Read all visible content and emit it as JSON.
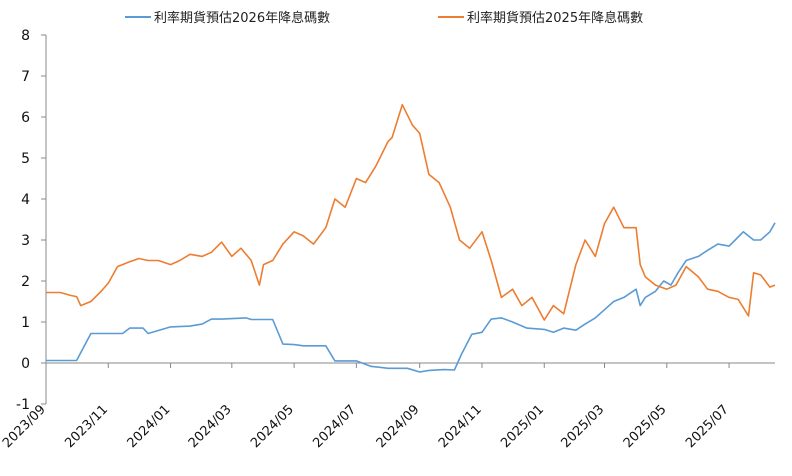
{
  "chart_data": {
    "type": "line",
    "title": "",
    "xlabel": "",
    "ylabel": "",
    "ylim": [
      -1,
      8
    ],
    "yticks": [
      -1,
      0,
      1,
      2,
      3,
      4,
      5,
      6,
      7,
      8
    ],
    "xlim": [
      "2023-09",
      "2025-08"
    ],
    "xticks": [
      "2023/09",
      "2023/11",
      "2024/01",
      "2024/03",
      "2024/05",
      "2024/07",
      "2024/09",
      "2024/11",
      "2025/01",
      "2025/03",
      "2025/05",
      "2025/07"
    ],
    "grid": false,
    "legend": "top",
    "series": [
      {
        "name": "利率期貨預估2026年降息碼數",
        "color": "#5b9bd5",
        "x": [
          "2023-09-01",
          "2023-10-01",
          "2023-10-15",
          "2023-11-15",
          "2023-11-22",
          "2023-12-05",
          "2023-12-10",
          "2024-01-01",
          "2024-01-20",
          "2024-02-01",
          "2024-02-10",
          "2024-02-20",
          "2024-03-15",
          "2024-03-20",
          "2024-04-10",
          "2024-04-20",
          "2024-05-01",
          "2024-05-10",
          "2024-06-01",
          "2024-06-10",
          "2024-07-01",
          "2024-07-15",
          "2024-08-01",
          "2024-08-20",
          "2024-09-01",
          "2024-09-10",
          "2024-09-25",
          "2024-10-05",
          "2024-10-12",
          "2024-10-22",
          "2024-11-01",
          "2024-11-10",
          "2024-11-20",
          "2024-12-01",
          "2024-12-15",
          "2025-01-01",
          "2025-01-10",
          "2025-01-20",
          "2025-02-01",
          "2025-02-10",
          "2025-02-20",
          "2025-03-01",
          "2025-03-10",
          "2025-03-20",
          "2025-04-01",
          "2025-04-05",
          "2025-04-10",
          "2025-04-20",
          "2025-04-28",
          "2025-05-05",
          "2025-05-12",
          "2025-05-20",
          "2025-06-01",
          "2025-06-10",
          "2025-06-20",
          "2025-07-01",
          "2025-07-07",
          "2025-07-15",
          "2025-07-25",
          "2025-08-01",
          "2025-08-10",
          "2025-08-15"
        ],
        "values": [
          0.06,
          0.06,
          0.72,
          0.72,
          0.85,
          0.85,
          0.72,
          0.88,
          0.9,
          0.95,
          1.07,
          1.07,
          1.1,
          1.06,
          1.06,
          0.46,
          0.45,
          0.42,
          0.42,
          0.05,
          0.05,
          -0.08,
          -0.13,
          -0.13,
          -0.22,
          -0.18,
          -0.16,
          -0.17,
          0.22,
          0.7,
          0.75,
          1.07,
          1.1,
          1.0,
          0.85,
          0.82,
          0.75,
          0.85,
          0.8,
          0.95,
          1.1,
          1.3,
          1.5,
          1.6,
          1.8,
          1.4,
          1.6,
          1.75,
          2.0,
          1.9,
          2.2,
          2.5,
          2.6,
          2.75,
          2.9,
          2.85,
          3.0,
          3.2,
          3.0,
          3.0,
          3.2,
          3.42
        ]
      },
      {
        "name": "利率期貨預估2025年降息碼數",
        "color": "#ed7d31",
        "x": [
          "2023-09-01",
          "2023-09-15",
          "2023-09-25",
          "2023-10-01",
          "2023-10-05",
          "2023-10-15",
          "2023-10-25",
          "2023-11-01",
          "2023-11-10",
          "2023-11-20",
          "2023-12-01",
          "2023-12-10",
          "2023-12-20",
          "2024-01-01",
          "2024-01-10",
          "2024-01-20",
          "2024-02-01",
          "2024-02-10",
          "2024-02-20",
          "2024-03-01",
          "2024-03-10",
          "2024-03-20",
          "2024-03-28",
          "2024-04-01",
          "2024-04-10",
          "2024-04-20",
          "2024-05-01",
          "2024-05-10",
          "2024-05-20",
          "2024-06-01",
          "2024-06-10",
          "2024-06-20",
          "2024-07-01",
          "2024-07-10",
          "2024-07-20",
          "2024-08-01",
          "2024-08-05",
          "2024-08-15",
          "2024-08-25",
          "2024-09-01",
          "2024-09-10",
          "2024-09-20",
          "2024-10-01",
          "2024-10-10",
          "2024-10-20",
          "2024-11-01",
          "2024-11-10",
          "2024-11-20",
          "2024-12-01",
          "2024-12-10",
          "2024-12-20",
          "2025-01-01",
          "2025-01-10",
          "2025-01-20",
          "2025-02-01",
          "2025-02-10",
          "2025-02-20",
          "2025-03-01",
          "2025-03-10",
          "2025-03-20",
          "2025-04-01",
          "2025-04-05",
          "2025-04-10",
          "2025-04-20",
          "2025-05-01",
          "2025-05-10",
          "2025-05-20",
          "2025-06-01",
          "2025-06-10",
          "2025-06-20",
          "2025-07-01",
          "2025-07-10",
          "2025-07-20",
          "2025-07-25",
          "2025-08-01",
          "2025-08-10",
          "2025-08-15"
        ],
        "values": [
          1.72,
          1.72,
          1.65,
          1.62,
          1.4,
          1.5,
          1.75,
          1.95,
          2.35,
          2.45,
          2.55,
          2.5,
          2.5,
          2.4,
          2.5,
          2.65,
          2.6,
          2.7,
          2.95,
          2.6,
          2.8,
          2.5,
          1.9,
          2.4,
          2.5,
          2.9,
          3.2,
          3.1,
          2.9,
          3.3,
          4.0,
          3.8,
          4.5,
          4.4,
          4.8,
          5.4,
          5.5,
          6.3,
          5.8,
          5.6,
          4.6,
          4.4,
          3.8,
          3.0,
          2.8,
          3.2,
          2.5,
          1.6,
          1.8,
          1.4,
          1.6,
          1.05,
          1.4,
          1.2,
          2.4,
          3.0,
          2.6,
          3.4,
          3.8,
          3.3,
          3.3,
          2.4,
          2.1,
          1.9,
          1.8,
          1.9,
          2.35,
          2.1,
          1.8,
          1.75,
          1.6,
          1.55,
          1.15,
          2.2,
          2.15,
          1.85,
          1.9
        ]
      }
    ]
  }
}
